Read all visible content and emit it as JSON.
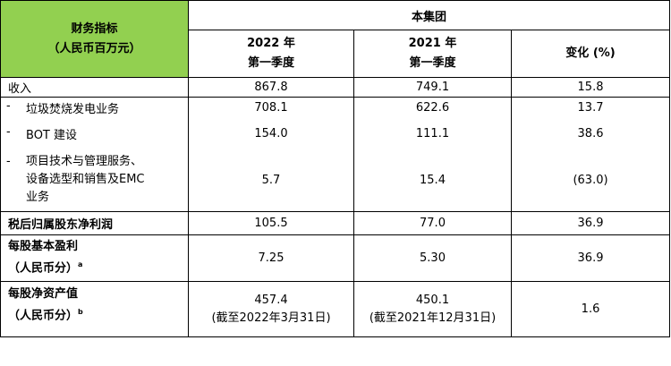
{
  "header": {
    "metric_title_line1": "财务指标",
    "metric_title_line2": "（人民币百万元）",
    "group": "本集团",
    "col_2022_line1": "2022 年",
    "col_2022_line2": "第一季度",
    "col_2021_line1": "2021 年",
    "col_2021_line2": "第一季度",
    "col_change": "变化 (%)"
  },
  "rows": {
    "revenue": {
      "label": "收入",
      "v2022": "867.8",
      "v2021": "749.1",
      "change": "15.8"
    },
    "waste": {
      "dash": "-",
      "label": "垃圾焚烧发电业务",
      "v2022": "708.1",
      "v2021": "622.6",
      "change": "13.7"
    },
    "bot": {
      "dash": "-",
      "label": "BOT 建设",
      "v2022": "154.0",
      "v2021": "111.1",
      "change": "38.6"
    },
    "tech": {
      "dash": "-",
      "label_line1": "项目技术与管理服务、",
      "label_line2": "设备选型和销售及EMC",
      "label_line3": "业务",
      "v2022": "5.7",
      "v2021": "15.4",
      "change": "(63.0)"
    },
    "profit": {
      "label": "税后归属股东净利润",
      "v2022": "105.5",
      "v2021": "77.0",
      "change": "36.9"
    },
    "eps": {
      "label_line1": "每股基本盈利",
      "label_line2": "（人民币分）",
      "sup": "a",
      "v2022": "7.25",
      "v2021": "5.30",
      "change": "36.9"
    },
    "nav": {
      "label_line1": "每股净资产值",
      "label_line2": "（人民币分）",
      "sup": "b",
      "v2022": "457.4",
      "v2022_note": "(截至2022年3月31日)",
      "v2021": "450.1",
      "v2021_note": "(截至2021年12月31日)",
      "change": "1.6"
    }
  }
}
